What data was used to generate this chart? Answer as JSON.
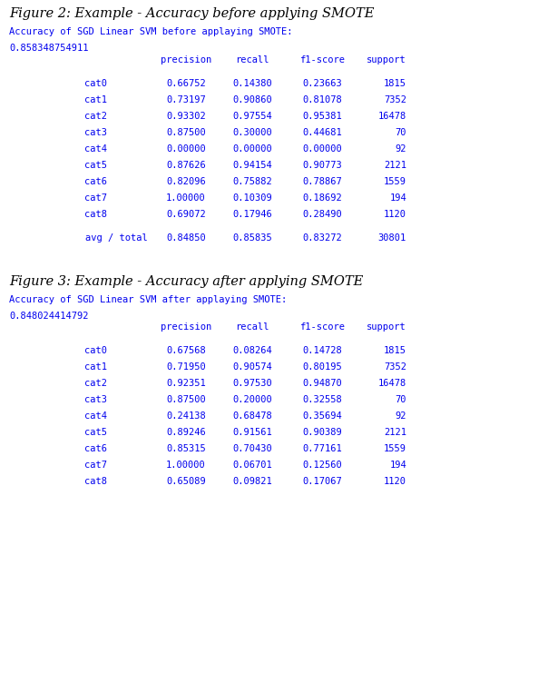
{
  "fig2_title": "Figure 2: Example - Accuracy before applying SMOTE",
  "fig3_title": "Figure 3: Example - Accuracy after applying SMOTE",
  "fig2_caption_line1": "Accuracy of SGD Linear SVM before applaying SMOTE:",
  "fig2_caption_line2": "0.858348754911",
  "fig3_caption_line1": "Accuracy of SGD Linear SVM after applaying SMOTE:",
  "fig3_caption_line2": "0.848024414792",
  "header": [
    "precision",
    "recall",
    "f1-score",
    "support"
  ],
  "fig2_rows": [
    [
      "cat0",
      "0.66752",
      "0.14380",
      "0.23663",
      "1815"
    ],
    [
      "cat1",
      "0.73197",
      "0.90860",
      "0.81078",
      "7352"
    ],
    [
      "cat2",
      "0.93302",
      "0.97554",
      "0.95381",
      "16478"
    ],
    [
      "cat3",
      "0.87500",
      "0.30000",
      "0.44681",
      "70"
    ],
    [
      "cat4",
      "0.00000",
      "0.00000",
      "0.00000",
      "92"
    ],
    [
      "cat5",
      "0.87626",
      "0.94154",
      "0.90773",
      "2121"
    ],
    [
      "cat6",
      "0.82096",
      "0.75882",
      "0.78867",
      "1559"
    ],
    [
      "cat7",
      "1.00000",
      "0.10309",
      "0.18692",
      "194"
    ],
    [
      "cat8",
      "0.69072",
      "0.17946",
      "0.28490",
      "1120"
    ]
  ],
  "fig2_avg": [
    "avg / total",
    "0.84850",
    "0.85835",
    "0.83272",
    "30801"
  ],
  "fig3_rows": [
    [
      "cat0",
      "0.67568",
      "0.08264",
      "0.14728",
      "1815"
    ],
    [
      "cat1",
      "0.71950",
      "0.90574",
      "0.80195",
      "7352"
    ],
    [
      "cat2",
      "0.92351",
      "0.97530",
      "0.94870",
      "16478"
    ],
    [
      "cat3",
      "0.87500",
      "0.20000",
      "0.32558",
      "70"
    ],
    [
      "cat4",
      "0.24138",
      "0.68478",
      "0.35694",
      "92"
    ],
    [
      "cat5",
      "0.89246",
      "0.91561",
      "0.90389",
      "2121"
    ],
    [
      "cat6",
      "0.85315",
      "0.70430",
      "0.77161",
      "1559"
    ],
    [
      "cat7",
      "1.00000",
      "0.06701",
      "0.12560",
      "194"
    ],
    [
      "cat8",
      "0.65089",
      "0.09821",
      "0.17067",
      "1120"
    ]
  ],
  "mono_color": "#0000EE",
  "fig_title_color": "#000000",
  "bg_color": "#FFFFFF",
  "font_size": 7.5,
  "title_font_size": 10.5
}
